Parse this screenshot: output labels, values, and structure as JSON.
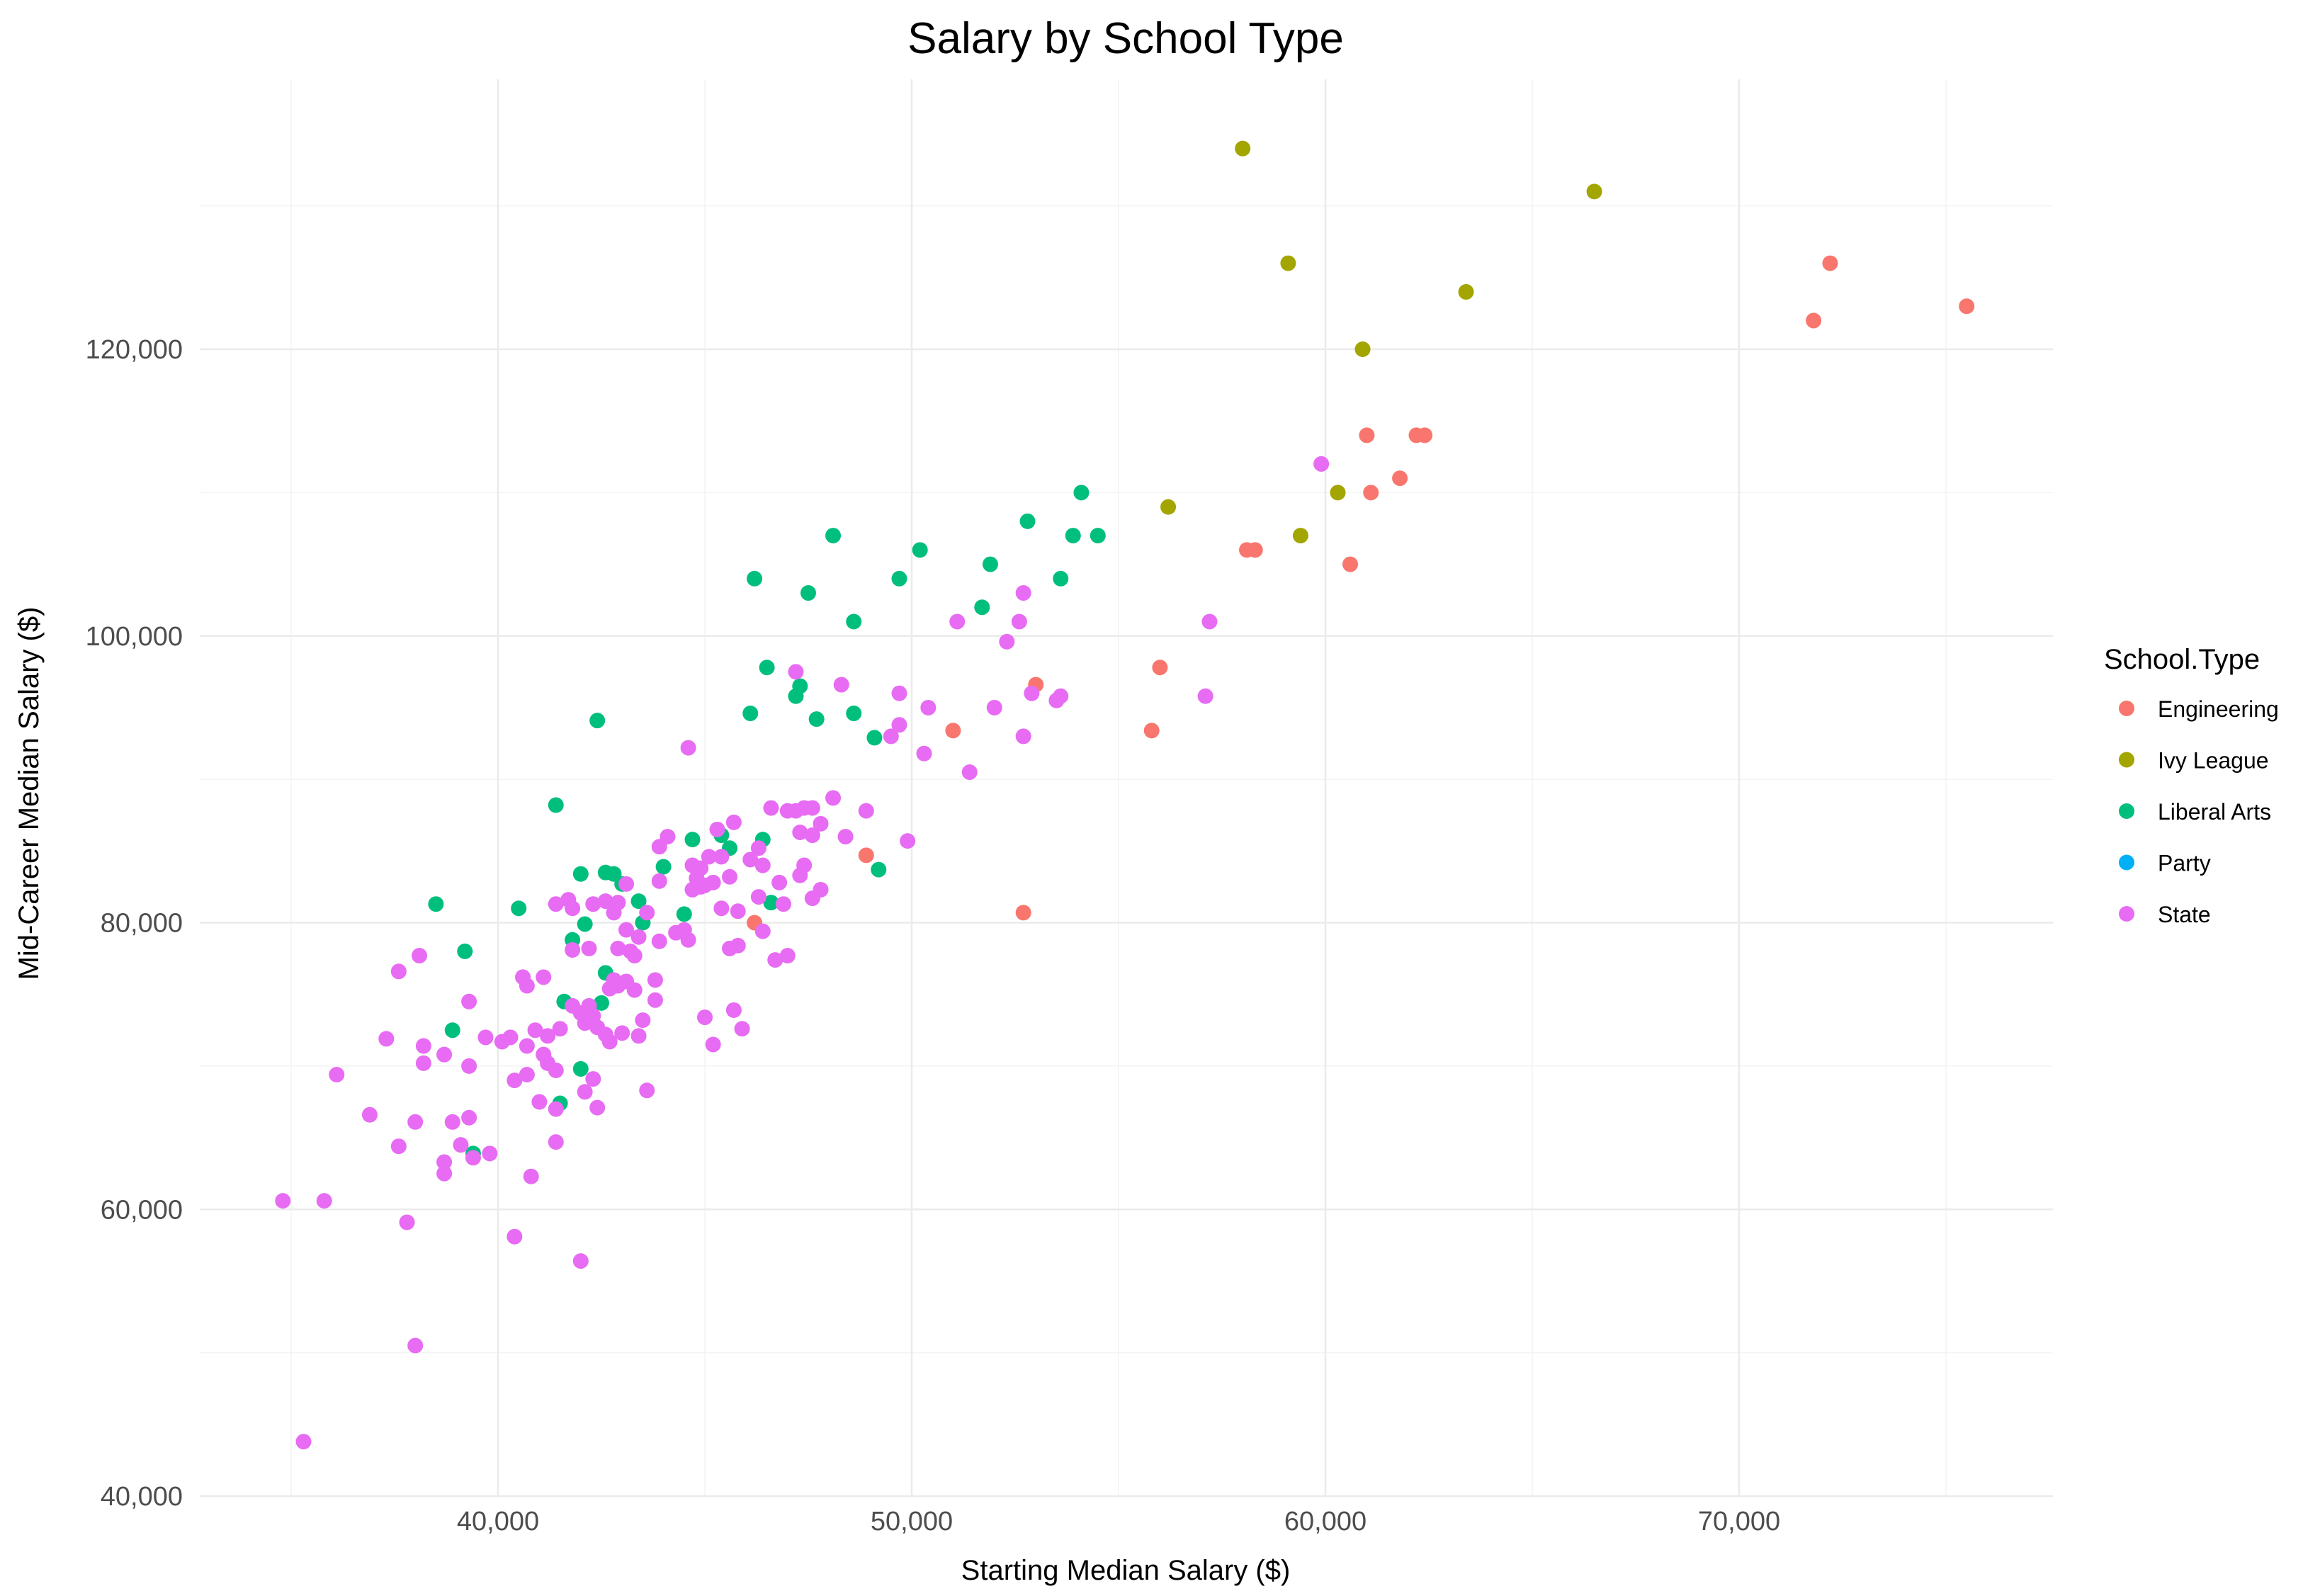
{
  "chart_data": {
    "type": "scatter",
    "title": "Salary by School Type",
    "xlabel": "Starting Median Salary ($)",
    "ylabel": "Mid-Career Median Salary ($)",
    "xlim": [
      32500,
      77500
    ],
    "ylim": [
      40000,
      138000
    ],
    "x_ticks": [
      40000,
      50000,
      60000,
      70000
    ],
    "x_tick_labels": [
      "40,000",
      "50,000",
      "60,000",
      "70,000"
    ],
    "y_ticks": [
      40000,
      60000,
      80000,
      100000,
      120000
    ],
    "y_tick_labels": [
      "40,000",
      "60,000",
      "80,000",
      "100,000",
      "120,000"
    ],
    "grid": true,
    "legend": {
      "title": "School.Type",
      "placement": "right"
    },
    "series": [
      {
        "name": "Engineering",
        "color": "#F8766D",
        "points": [
          [
            72200,
            126000
          ],
          [
            71800,
            122000
          ],
          [
            75500,
            123000
          ],
          [
            61000,
            114000
          ],
          [
            62200,
            114000
          ],
          [
            62400,
            114000
          ],
          [
            61800,
            111000
          ],
          [
            61100,
            110000
          ],
          [
            58100,
            106000
          ],
          [
            58300,
            106000
          ],
          [
            60600,
            105000
          ],
          [
            56000,
            97800
          ],
          [
            55800,
            93400
          ],
          [
            53000,
            96600
          ],
          [
            51000,
            93400
          ],
          [
            48900,
            84700
          ],
          [
            46200,
            80000
          ],
          [
            52700,
            80700
          ]
        ]
      },
      {
        "name": "Ivy League",
        "color": "#A3A500",
        "points": [
          [
            58000,
            134000
          ],
          [
            66500,
            131000
          ],
          [
            59100,
            126000
          ],
          [
            63400,
            124000
          ],
          [
            60900,
            120000
          ],
          [
            60300,
            110000
          ],
          [
            56200,
            109000
          ],
          [
            59400,
            107000
          ]
        ]
      },
      {
        "name": "Liberal Arts",
        "color": "#00BF7D",
        "points": [
          [
            54100,
            110000
          ],
          [
            52800,
            108000
          ],
          [
            54500,
            107000
          ],
          [
            53900,
            107000
          ],
          [
            48100,
            107000
          ],
          [
            50200,
            106000
          ],
          [
            51900,
            105000
          ],
          [
            46200,
            104000
          ],
          [
            49700,
            104000
          ],
          [
            53600,
            104000
          ],
          [
            47500,
            103000
          ],
          [
            51700,
            102000
          ],
          [
            48600,
            101000
          ],
          [
            46500,
            97800
          ],
          [
            47300,
            96500
          ],
          [
            47200,
            95800
          ],
          [
            46100,
            94600
          ],
          [
            47700,
            94200
          ],
          [
            48600,
            94600
          ],
          [
            49100,
            92900
          ],
          [
            42400,
            94100
          ],
          [
            41400,
            88200
          ],
          [
            38500,
            81300
          ],
          [
            40500,
            81000
          ],
          [
            39200,
            78000
          ],
          [
            43400,
            81500
          ],
          [
            44500,
            80600
          ],
          [
            43500,
            80000
          ],
          [
            42100,
            79900
          ],
          [
            41800,
            78800
          ],
          [
            43000,
            82700
          ],
          [
            44000,
            83900
          ],
          [
            42600,
            83500
          ],
          [
            42000,
            83400
          ],
          [
            42800,
            83400
          ],
          [
            45400,
            86100
          ],
          [
            45600,
            85200
          ],
          [
            46400,
            85800
          ],
          [
            46600,
            81400
          ],
          [
            44700,
            85800
          ],
          [
            42600,
            76500
          ],
          [
            41600,
            74500
          ],
          [
            42500,
            74400
          ],
          [
            38900,
            72500
          ],
          [
            42000,
            69800
          ],
          [
            41500,
            67400
          ],
          [
            39400,
            63900
          ],
          [
            49200,
            83700
          ]
        ]
      },
      {
        "name": "Party",
        "color": "#00B0F6",
        "points": []
      },
      {
        "name": "State",
        "color": "#E76BF3",
        "points": [
          [
            59900,
            112000
          ],
          [
            57200,
            101000
          ],
          [
            52600,
            101000
          ],
          [
            51100,
            101000
          ],
          [
            52700,
            103000
          ],
          [
            52300,
            99600
          ],
          [
            47200,
            97500
          ],
          [
            48300,
            96600
          ],
          [
            49700,
            96000
          ],
          [
            52900,
            96000
          ],
          [
            53600,
            95800
          ],
          [
            53500,
            95500
          ],
          [
            52000,
            95000
          ],
          [
            50400,
            95000
          ],
          [
            57100,
            95800
          ],
          [
            49700,
            93800
          ],
          [
            49500,
            93000
          ],
          [
            52700,
            93000
          ],
          [
            50300,
            91800
          ],
          [
            51400,
            90500
          ],
          [
            44600,
            92200
          ],
          [
            48100,
            88700
          ],
          [
            47400,
            88000
          ],
          [
            47000,
            87800
          ],
          [
            47600,
            88000
          ],
          [
            48900,
            87800
          ],
          [
            46600,
            88000
          ],
          [
            47200,
            87800
          ],
          [
            47800,
            86900
          ],
          [
            45700,
            87000
          ],
          [
            45300,
            86500
          ],
          [
            47300,
            86300
          ],
          [
            47600,
            86100
          ],
          [
            48400,
            86000
          ],
          [
            49900,
            85700
          ],
          [
            46800,
            82800
          ],
          [
            44100,
            86000
          ],
          [
            43900,
            85300
          ],
          [
            46300,
            85200
          ],
          [
            46100,
            84400
          ],
          [
            45400,
            84600
          ],
          [
            45100,
            84600
          ],
          [
            44700,
            84000
          ],
          [
            44900,
            83800
          ],
          [
            46400,
            84000
          ],
          [
            47400,
            84000
          ],
          [
            47300,
            83300
          ],
          [
            44800,
            83100
          ],
          [
            45600,
            83200
          ],
          [
            43900,
            82900
          ],
          [
            45200,
            82800
          ],
          [
            45000,
            82600
          ],
          [
            44900,
            82500
          ],
          [
            44700,
            82300
          ],
          [
            47800,
            82300
          ],
          [
            46300,
            81800
          ],
          [
            47600,
            81700
          ],
          [
            46900,
            81300
          ],
          [
            45400,
            81000
          ],
          [
            45800,
            80800
          ],
          [
            44500,
            79500
          ],
          [
            44300,
            79300
          ],
          [
            44600,
            78800
          ],
          [
            43900,
            78700
          ],
          [
            45600,
            78200
          ],
          [
            45800,
            78400
          ],
          [
            46400,
            79400
          ],
          [
            46700,
            77400
          ],
          [
            47000,
            77700
          ],
          [
            43100,
            82700
          ],
          [
            42900,
            81400
          ],
          [
            42300,
            81300
          ],
          [
            42600,
            81500
          ],
          [
            41700,
            81600
          ],
          [
            41400,
            81300
          ],
          [
            41800,
            81000
          ],
          [
            42800,
            80700
          ],
          [
            43600,
            80700
          ],
          [
            43100,
            79500
          ],
          [
            43400,
            79000
          ],
          [
            42900,
            78200
          ],
          [
            43200,
            78000
          ],
          [
            42200,
            78200
          ],
          [
            41800,
            78100
          ],
          [
            43300,
            77700
          ],
          [
            43100,
            75900
          ],
          [
            43300,
            75300
          ],
          [
            42800,
            76000
          ],
          [
            42900,
            75600
          ],
          [
            42700,
            75400
          ],
          [
            41800,
            74200
          ],
          [
            42000,
            73700
          ],
          [
            42200,
            74200
          ],
          [
            42300,
            73500
          ],
          [
            42100,
            73000
          ],
          [
            43800,
            76000
          ],
          [
            43800,
            74600
          ],
          [
            43500,
            73200
          ],
          [
            43400,
            72100
          ],
          [
            42400,
            72700
          ],
          [
            42600,
            72200
          ],
          [
            42700,
            71700
          ],
          [
            43000,
            72300
          ],
          [
            41500,
            72600
          ],
          [
            41200,
            72100
          ],
          [
            40900,
            72500
          ],
          [
            40600,
            76200
          ],
          [
            40700,
            75600
          ],
          [
            41100,
            76200
          ],
          [
            40700,
            71400
          ],
          [
            41200,
            70200
          ],
          [
            40300,
            72000
          ],
          [
            40100,
            71700
          ],
          [
            39700,
            72000
          ],
          [
            38200,
            71400
          ],
          [
            37300,
            71900
          ],
          [
            38200,
            70200
          ],
          [
            38700,
            70800
          ],
          [
            39300,
            70000
          ],
          [
            38100,
            77700
          ],
          [
            37600,
            76600
          ],
          [
            39300,
            74500
          ],
          [
            40400,
            69000
          ],
          [
            40700,
            69400
          ],
          [
            41100,
            70800
          ],
          [
            41400,
            69700
          ],
          [
            42300,
            69100
          ],
          [
            42100,
            68200
          ],
          [
            42400,
            67100
          ],
          [
            41400,
            67000
          ],
          [
            39300,
            66400
          ],
          [
            38900,
            66100
          ],
          [
            36900,
            66600
          ],
          [
            38000,
            66100
          ],
          [
            37600,
            64400
          ],
          [
            39100,
            64500
          ],
          [
            39800,
            63900
          ],
          [
            39400,
            63600
          ],
          [
            38700,
            63300
          ],
          [
            38700,
            62500
          ],
          [
            40800,
            62300
          ],
          [
            41400,
            64700
          ],
          [
            42000,
            56400
          ],
          [
            40400,
            58100
          ],
          [
            37800,
            59100
          ],
          [
            35800,
            60600
          ],
          [
            34800,
            60600
          ],
          [
            36100,
            69400
          ],
          [
            38000,
            50500
          ],
          [
            35300,
            43800
          ],
          [
            43600,
            68300
          ],
          [
            45200,
            71500
          ],
          [
            45000,
            73400
          ],
          [
            45700,
            73900
          ],
          [
            45900,
            72600
          ],
          [
            41000,
            67500
          ]
        ]
      }
    ]
  }
}
